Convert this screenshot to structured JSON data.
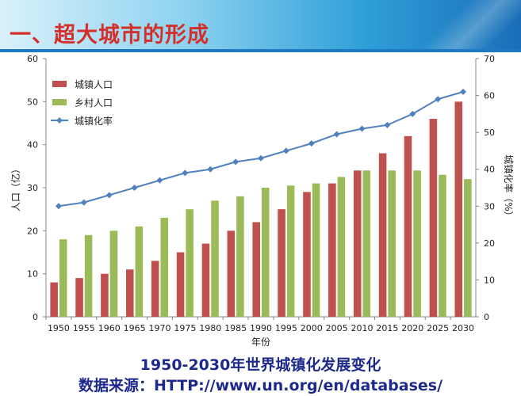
{
  "header": {
    "title": "一、超大城市的形成"
  },
  "captions": {
    "line1": "1950-2030年世界城镇化发展变化",
    "line2": "数据来源：HTTP://www.un.org/en/databases/"
  },
  "colors": {
    "urban": "#c0504d",
    "rural": "#9bbb59",
    "rate": "#4f81bd",
    "title": "#d4302b",
    "caption": "#1d2a8c"
  },
  "chart_data": {
    "type": "bar",
    "categories": [
      "1950",
      "1955",
      "1960",
      "1965",
      "1970",
      "1975",
      "1980",
      "1985",
      "1990",
      "1995",
      "2000",
      "2005",
      "2010",
      "2015",
      "2020",
      "2025",
      "2030"
    ],
    "series": [
      {
        "name": "城镇人口",
        "type": "bar",
        "axis": "left",
        "values": [
          8,
          9,
          10,
          11,
          13,
          15,
          17,
          20,
          22,
          25,
          29,
          31,
          34,
          38,
          42,
          46,
          50
        ]
      },
      {
        "name": "乡村人口",
        "type": "bar",
        "axis": "left",
        "values": [
          18,
          19,
          20,
          21,
          23,
          25,
          27,
          28,
          30,
          30.5,
          31,
          32.5,
          34,
          34,
          34,
          33,
          32
        ]
      },
      {
        "name": "城镇化率",
        "type": "line",
        "axis": "right",
        "values": [
          30,
          31,
          33,
          35,
          37,
          39,
          40,
          42,
          43,
          45,
          47,
          49.5,
          51,
          52,
          55,
          59,
          61
        ]
      }
    ],
    "xlabel": "年份",
    "ylabel": "人口（亿）",
    "y2label": "城镇化率（%）",
    "ylim": [
      0,
      60
    ],
    "y2lim": [
      0,
      70
    ],
    "yticks": [
      0,
      10,
      20,
      30,
      40,
      50,
      60
    ],
    "y2ticks": [
      0,
      10,
      20,
      30,
      40,
      50,
      60,
      70
    ],
    "legend_position": "top-left",
    "grid": false
  }
}
